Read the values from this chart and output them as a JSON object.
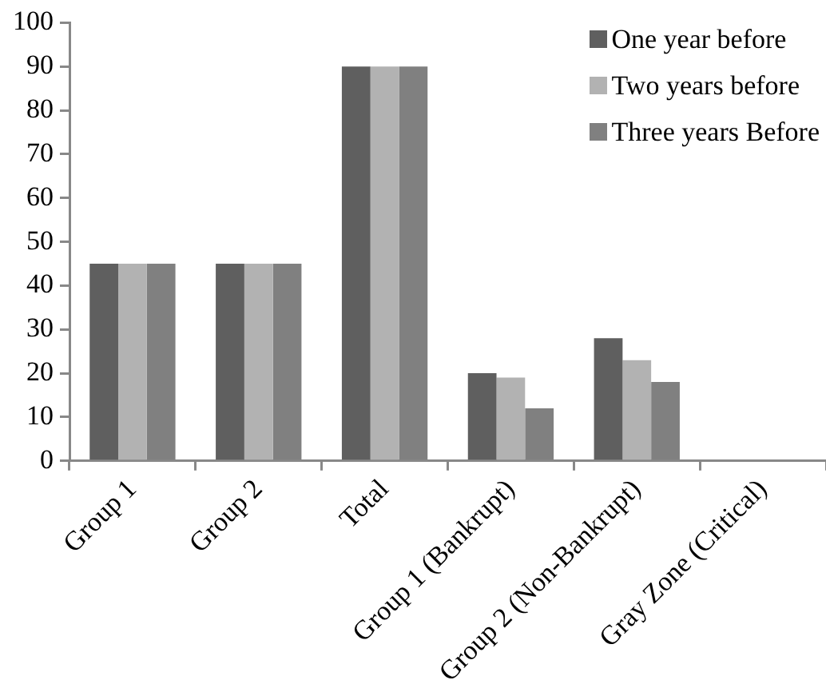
{
  "chart_data": {
    "type": "bar",
    "categories": [
      "Group 1",
      "Group 2",
      "Total",
      "Group 1 (Bankrupt)",
      "Group 2 (Non-Bankrupt)",
      "Gray Zone (Critical)"
    ],
    "series": [
      {
        "name": "One year before",
        "color": "#5f5f5f",
        "values": [
          45,
          45,
          90,
          20,
          28,
          0
        ]
      },
      {
        "name": "Two years before",
        "color": "#b2b2b2",
        "values": [
          45,
          45,
          90,
          19,
          23,
          0
        ]
      },
      {
        "name": "Three years Before",
        "color": "#808080",
        "values": [
          45,
          45,
          90,
          12,
          18,
          0
        ]
      }
    ],
    "ylim": [
      0,
      100
    ],
    "yticks": [
      0,
      10,
      20,
      30,
      40,
      50,
      60,
      70,
      80,
      90,
      100
    ],
    "grid": false,
    "legend": "top right"
  }
}
